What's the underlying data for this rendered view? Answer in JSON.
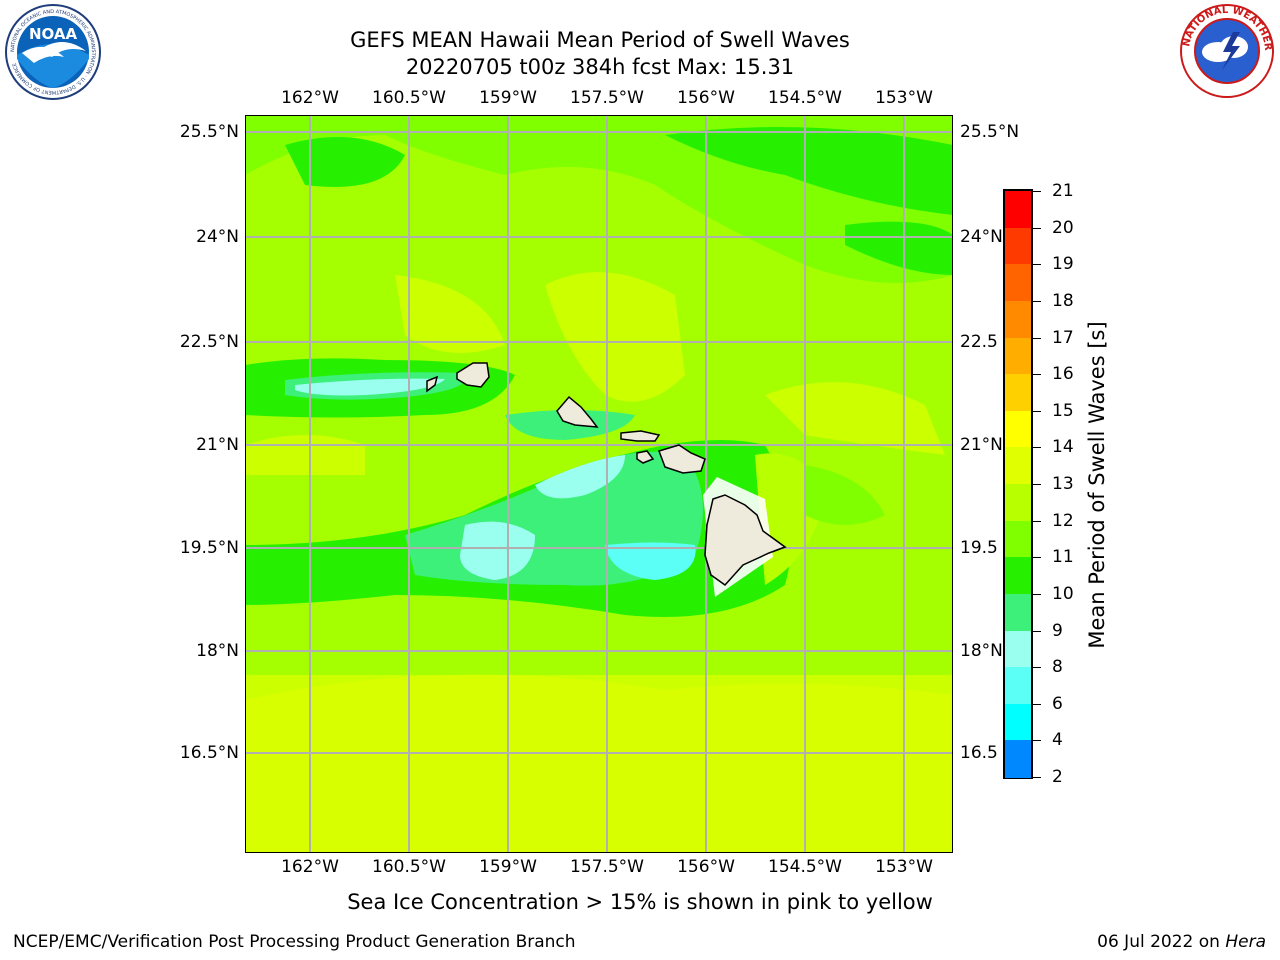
{
  "header": {
    "title_line1": "GEFS MEAN Hawaii Mean Period of Swell Waves",
    "title_line2": "20220705 t00z 384h fcst   Max: 15.31"
  },
  "logos": {
    "noaa": {
      "text": "NOAA",
      "ring_text": "NATIONAL OCEANIC AND ATMOSPHERIC ADMINISTRATION · U.S. DEPARTMENT OF COMMERCE"
    },
    "nws": {
      "ring_text": "NATIONAL WEATHER SERVICE"
    }
  },
  "map": {
    "lon_ticks": [
      "162°W",
      "160.5°W",
      "159°W",
      "157.5°W",
      "156°W",
      "154.5°W",
      "153°W"
    ],
    "lat_ticks_left": [
      "25.5°N",
      "24°N",
      "22.5°N",
      "21°N",
      "19.5°N",
      "18°N",
      "16.5°N"
    ],
    "lat_ticks_right": [
      "25.5°N",
      "24°N",
      "22.5",
      "21°N",
      "19.5",
      "18°N",
      "16.5"
    ],
    "background_level_color": "#a6ff00",
    "land_color": "#eeebdd",
    "grid_color": "#b0b0b0"
  },
  "colorbar": {
    "title": "Mean Period of Swell Waves [s]",
    "labels": [
      "21",
      "20",
      "19",
      "18",
      "17",
      "16",
      "15",
      "14",
      "13",
      "12",
      "11",
      "10",
      "9",
      "8",
      "6",
      "4",
      "2"
    ],
    "colors": [
      "#ff0000",
      "#ff3a00",
      "#ff6400",
      "#ff8a00",
      "#ffae00",
      "#ffd000",
      "#ffff00",
      "#e0ff00",
      "#b8ff00",
      "#80ff00",
      "#26f000",
      "#3df07a",
      "#9bfff0",
      "#5cfff6",
      "#00ffff",
      "#0088ff",
      "#0000ff"
    ]
  },
  "footer": {
    "note": "Sea Ice Concentration > 15% is shown in pink to yellow",
    "credit_left": "NCEP/EMC/Verification Post Processing Product Generation Branch",
    "credit_date": "06 Jul 2022 on",
    "credit_host": "Hera"
  }
}
